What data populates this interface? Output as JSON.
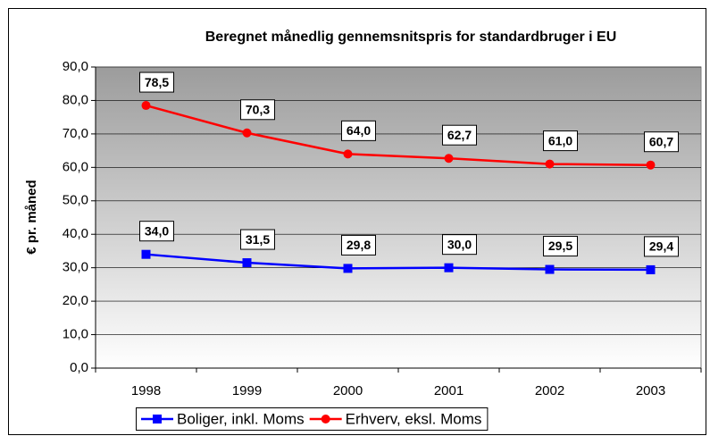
{
  "chart_data": {
    "type": "line",
    "title": "Beregnet månedlig gennemsnitspris for standardbruger i EU",
    "y_label": "€ pr. måned",
    "categories": [
      "1998",
      "1999",
      "2000",
      "2001",
      "2002",
      "2003"
    ],
    "series": [
      {
        "name": "Boliger, inkl. Moms",
        "color": "#0000ff",
        "marker": "square",
        "values": [
          34.0,
          31.5,
          29.8,
          30.0,
          29.5,
          29.4
        ],
        "value_labels": [
          "34,0",
          "31,5",
          "29,8",
          "30,0",
          "29,5",
          "29,4"
        ]
      },
      {
        "name": "Erhverv, eksl. Moms",
        "color": "#ff0000",
        "marker": "circle",
        "values": [
          78.5,
          70.3,
          64.0,
          62.7,
          61.0,
          60.7
        ],
        "value_labels": [
          "78,5",
          "70,3",
          "64,0",
          "62,7",
          "61,0",
          "60,7"
        ]
      }
    ],
    "ylim": [
      0,
      90
    ],
    "yticks": [
      {
        "value": 0,
        "label": "0,0"
      },
      {
        "value": 10,
        "label": "10,0"
      },
      {
        "value": 20,
        "label": "20,0"
      },
      {
        "value": 30,
        "label": "30,0"
      },
      {
        "value": 40,
        "label": "40,0"
      },
      {
        "value": 50,
        "label": "50,0"
      },
      {
        "value": 60,
        "label": "60,0"
      },
      {
        "value": 70,
        "label": "70,0"
      },
      {
        "value": 80,
        "label": "80,0"
      },
      {
        "value": 90,
        "label": "90,0"
      }
    ],
    "grid": true,
    "legend": "bottom"
  }
}
